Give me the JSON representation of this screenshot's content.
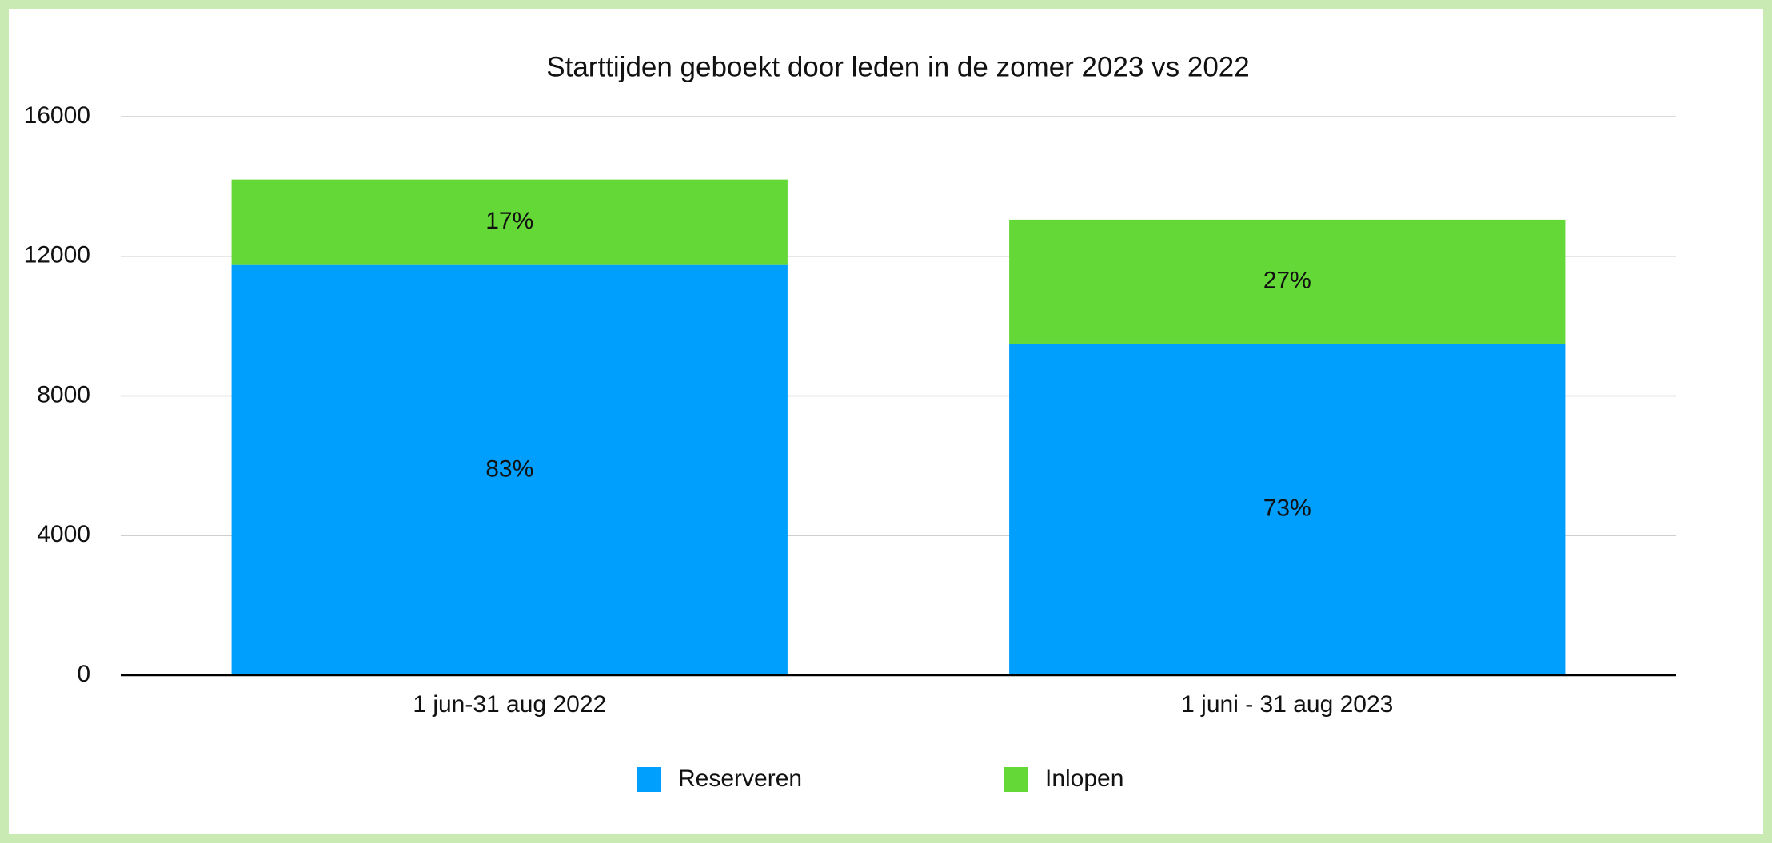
{
  "chart_data": {
    "type": "stacked_bar",
    "title": "Starttijden geboekt door leden in de zomer 2023 vs 2022",
    "categories": [
      "1 jun-31 aug 2022",
      "1 juni - 31 aug 2023"
    ],
    "series": [
      {
        "name": "Reserveren",
        "color": "#009ffd",
        "values": [
          11750,
          9500
        ],
        "segment_labels": [
          "83%",
          "73%"
        ]
      },
      {
        "name": "Inlopen",
        "color": "#64d837",
        "values": [
          2450,
          3550
        ],
        "segment_labels": [
          "17%",
          "27%"
        ]
      }
    ],
    "ylim": [
      0,
      16000
    ],
    "yticks": [
      0,
      4000,
      8000,
      12000,
      16000
    ],
    "grid": true,
    "legend": "bottom"
  }
}
